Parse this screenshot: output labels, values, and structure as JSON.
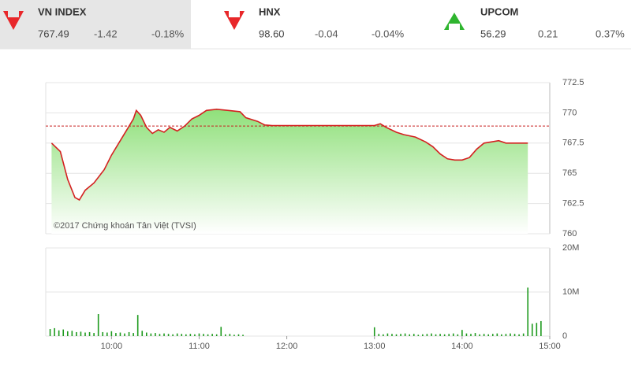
{
  "indices": [
    {
      "name": "VN INDEX",
      "value": "767.49",
      "change": "-1.42",
      "pct": "-0.18%",
      "color": "#e8272a"
    },
    {
      "name": "HNX",
      "value": "98.60",
      "change": "-0.04",
      "pct": "-0.04%",
      "color": "#e8272a"
    },
    {
      "name": "UPCOM",
      "value": "56.29",
      "change": "0.21",
      "pct": "0.37%",
      "color": "#2fb52f"
    }
  ],
  "chart_data": [
    {
      "type": "line",
      "color": "#d42020",
      "reference": 768.91,
      "reference_color": "#c81e1e",
      "watermark": "©2017 Chứng khoán Tân Việt (TVSI)",
      "xlim": [
        555,
        900
      ],
      "ylim": [
        760,
        772.5
      ],
      "yticks": [
        760,
        762.5,
        765,
        767.5,
        770,
        772.5
      ],
      "grid": true,
      "x": [
        559,
        565,
        570,
        575,
        578,
        582,
        588,
        595,
        600,
        605,
        610,
        615,
        617,
        620,
        624,
        628,
        632,
        636,
        640,
        645,
        650,
        655,
        660,
        665,
        672,
        680,
        688,
        692,
        700,
        705,
        710,
        780,
        784,
        788,
        795,
        800,
        808,
        815,
        820,
        825,
        830,
        835,
        840,
        845,
        850,
        855,
        860,
        865,
        870,
        875,
        885
      ],
      "values": [
        767.5,
        766.8,
        764.5,
        763.0,
        762.8,
        763.6,
        764.2,
        765.3,
        766.5,
        767.5,
        768.5,
        769.5,
        770.2,
        769.8,
        768.8,
        768.3,
        768.6,
        768.4,
        768.8,
        768.5,
        768.9,
        769.5,
        769.8,
        770.2,
        770.3,
        770.2,
        770.1,
        769.6,
        769.3,
        769.0,
        768.95,
        768.95,
        769.1,
        768.8,
        768.4,
        768.2,
        768.0,
        767.6,
        767.2,
        766.6,
        766.2,
        766.1,
        766.1,
        766.3,
        767.0,
        767.5,
        767.6,
        767.7,
        767.5,
        767.5,
        767.5
      ]
    },
    {
      "type": "bar",
      "color": "#1e9a1e",
      "xlim": [
        555,
        900
      ],
      "ylim": [
        0,
        20000000
      ],
      "grid": true,
      "yticks": [
        0,
        {
          "value": 10000000,
          "label": "10M"
        },
        {
          "value": 20000000,
          "label": "20M"
        }
      ],
      "xticks": [
        {
          "value": 600,
          "label": "10:00"
        },
        {
          "value": 660,
          "label": "11:00"
        },
        {
          "value": 720,
          "label": "12:00"
        },
        {
          "value": 780,
          "label": "13:00"
        },
        {
          "value": 840,
          "label": "14:00"
        },
        {
          "value": 900,
          "label": "15:00"
        }
      ],
      "x": [
        558,
        561,
        564,
        567,
        570,
        573,
        576,
        579,
        582,
        585,
        588,
        591,
        594,
        597,
        600,
        603,
        606,
        609,
        612,
        615,
        618,
        621,
        624,
        627,
        630,
        633,
        636,
        639,
        642,
        645,
        648,
        651,
        654,
        657,
        660,
        663,
        666,
        669,
        672,
        675,
        678,
        681,
        684,
        687,
        690,
        780,
        783,
        786,
        789,
        792,
        795,
        798,
        801,
        804,
        807,
        810,
        813,
        816,
        819,
        822,
        825,
        828,
        831,
        834,
        837,
        840,
        843,
        846,
        849,
        852,
        855,
        858,
        861,
        864,
        867,
        870,
        873,
        876,
        879,
        882,
        885,
        888,
        891,
        894
      ],
      "values": [
        1600000,
        1800000,
        1300000,
        1500000,
        1100000,
        1200000,
        900000,
        1000000,
        800000,
        900000,
        700000,
        5000000,
        900000,
        800000,
        1100000,
        700000,
        800000,
        600000,
        900000,
        700000,
        4800000,
        1200000,
        800000,
        600000,
        700000,
        500000,
        600000,
        500000,
        400000,
        600000,
        500000,
        400000,
        500000,
        400000,
        600000,
        500000,
        400000,
        500000,
        400000,
        2100000,
        400000,
        500000,
        300000,
        400000,
        300000,
        2000000,
        500000,
        400000,
        600000,
        500000,
        400000,
        500000,
        600000,
        400000,
        500000,
        300000,
        400000,
        500000,
        600000,
        400000,
        500000,
        400000,
        500000,
        600000,
        400000,
        1400000,
        600000,
        500000,
        700000,
        400000,
        500000,
        400000,
        500000,
        600000,
        400000,
        500000,
        600000,
        500000,
        400000,
        600000,
        11000000,
        2800000,
        3000000,
        3400000
      ]
    }
  ]
}
